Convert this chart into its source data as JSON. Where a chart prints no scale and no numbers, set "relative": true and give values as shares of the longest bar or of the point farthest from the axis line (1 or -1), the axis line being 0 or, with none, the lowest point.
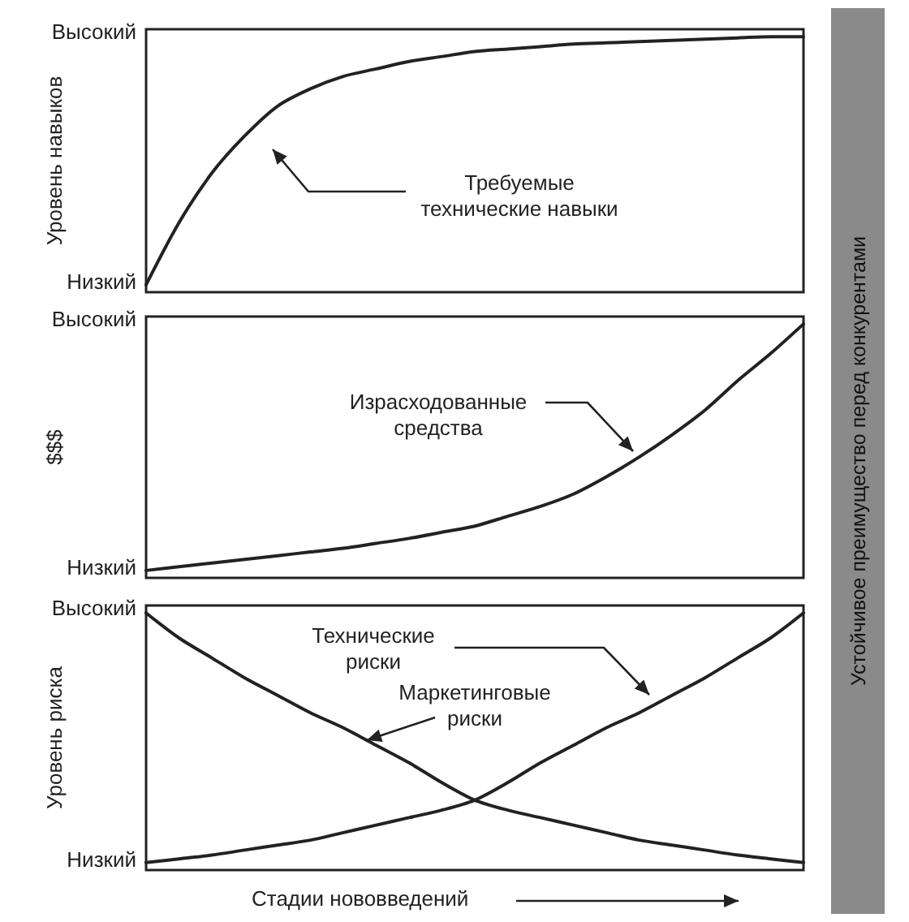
{
  "chart_data": [
    {
      "type": "line",
      "relative": true,
      "ylabel": "Уровень навыков",
      "categories": [
        null,
        null,
        null,
        null,
        null,
        null,
        null,
        null,
        null,
        null,
        null,
        null,
        null,
        null,
        null,
        null,
        null,
        null,
        null,
        null,
        null
      ],
      "marker": "none",
      "series": [
        {
          "color": "#222222",
          "values": [
            0,
            0.25,
            0.45,
            0.6,
            0.72,
            0.79,
            0.84,
            0.87,
            0.9,
            0.92,
            0.94,
            0.95,
            0.96,
            0.97,
            0.975,
            0.98,
            0.985,
            0.99,
            0.995,
            1,
            1
          ]
        }
      ],
      "annotations": [
        "Требуемые технические навыки",
        "Устойчивое преимущество перед конкурентами",
        "Высокий",
        "Низкий"
      ]
    },
    {
      "type": "line",
      "relative": true,
      "ylabel": "$$$",
      "categories": [
        null,
        null,
        null,
        null,
        null,
        null,
        null,
        null,
        null,
        null,
        null,
        null,
        null,
        null,
        null,
        null,
        null,
        null,
        null,
        null,
        null
      ],
      "marker": "none",
      "series": [
        {
          "color": "#222222",
          "values": [
            0,
            0.015,
            0.03,
            0.045,
            0.06,
            0.075,
            0.09,
            0.11,
            0.13,
            0.155,
            0.18,
            0.22,
            0.26,
            0.31,
            0.38,
            0.46,
            0.55,
            0.65,
            0.77,
            0.88,
            1
          ]
        }
      ],
      "annotations": [
        "Израсходованные средства",
        "Высокий",
        "Низкий"
      ]
    },
    {
      "type": "line",
      "relative": true,
      "ylabel": "Уровень риска",
      "xlabel": "Стадии нововведений",
      "categories": [
        null,
        null,
        null,
        null,
        null,
        null,
        null,
        null,
        null,
        null,
        null,
        null,
        null,
        null,
        null,
        null,
        null,
        null,
        null,
        null,
        null
      ],
      "marker": "none",
      "series": [
        {
          "color": "#222222",
          "values": [
            1,
            0.9,
            0.82,
            0.74,
            0.67,
            0.6,
            0.54,
            0.47,
            0.4,
            0.32,
            0.25,
            0.21,
            0.18,
            0.15,
            0.12,
            0.09,
            0.07,
            0.05,
            0.03,
            0.015,
            0
          ]
        },
        {
          "color": "#222222",
          "values": [
            0,
            0.015,
            0.03,
            0.05,
            0.07,
            0.09,
            0.12,
            0.15,
            0.18,
            0.21,
            0.25,
            0.32,
            0.4,
            0.47,
            0.54,
            0.6,
            0.67,
            0.74,
            0.82,
            0.9,
            1
          ]
        }
      ],
      "annotations": [
        "Технические риски",
        "Маркетинговые риски",
        "Высокий",
        "Низкий"
      ]
    }
  ]
}
